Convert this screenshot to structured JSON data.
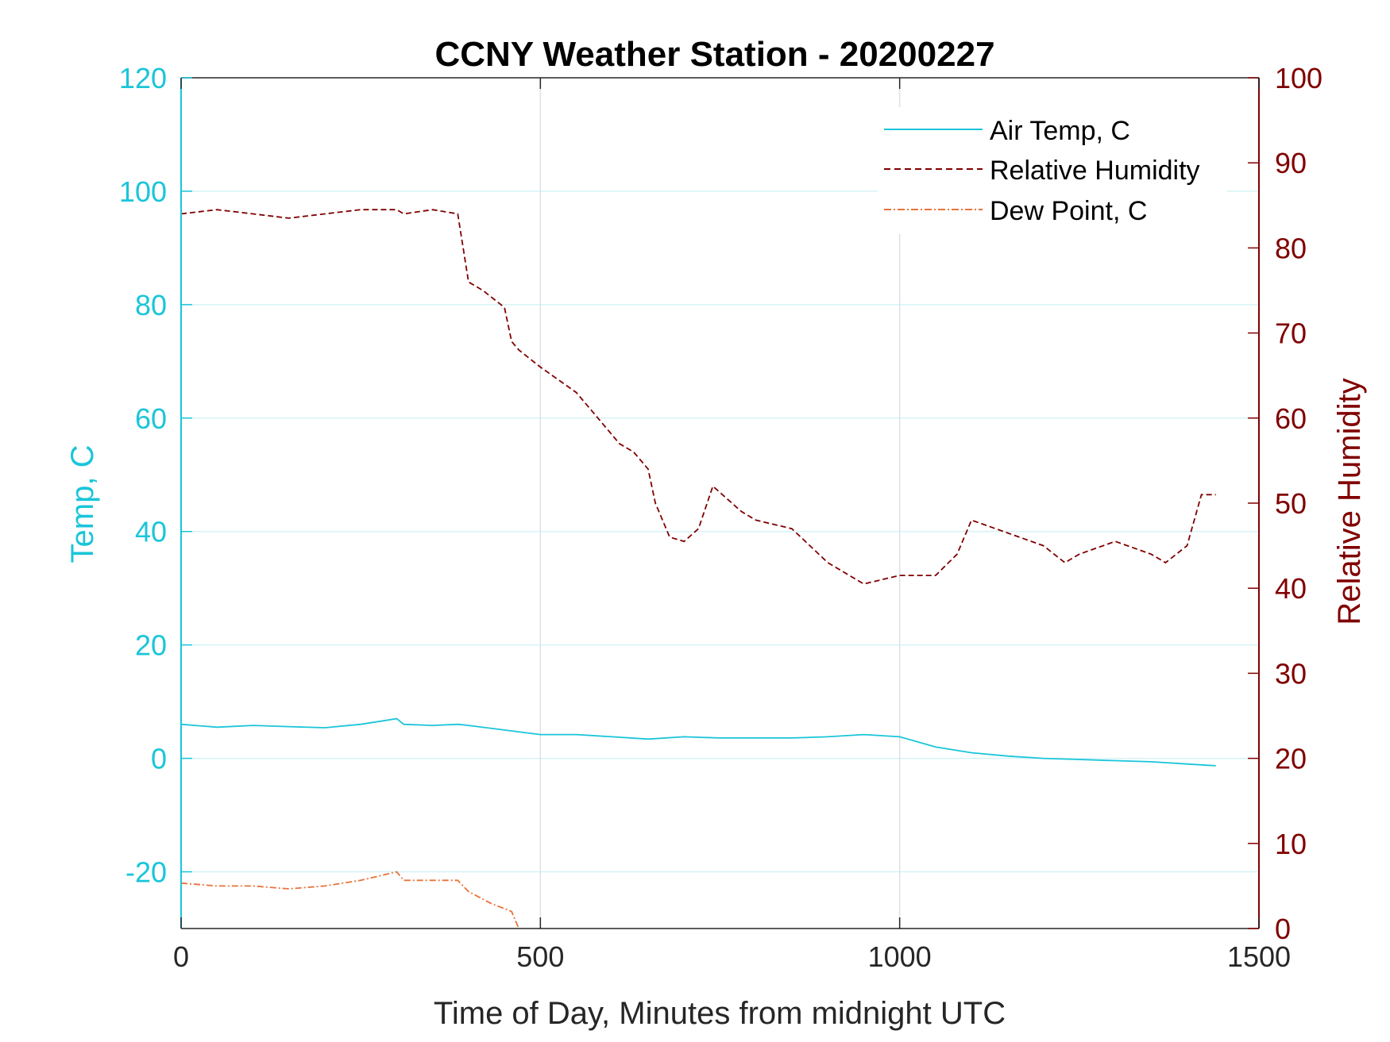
{
  "chart_data": {
    "type": "line",
    "title": "CCNY Weather Station - 20200227",
    "xlabel": "Time of Day, Minutes from midnight UTC",
    "ylabel_left": "Temp, C",
    "ylabel_right": "Relative Humidity",
    "xlim": [
      0,
      1500
    ],
    "ylim_left": [
      -30,
      120
    ],
    "ylim_right": [
      0,
      100
    ],
    "x_ticks": [
      0,
      500,
      1000,
      1500
    ],
    "y_ticks_left": [
      -20,
      0,
      20,
      40,
      60,
      80,
      100,
      120
    ],
    "y_ticks_right": [
      0,
      10,
      20,
      30,
      40,
      50,
      60,
      70,
      80,
      90,
      100
    ],
    "grid_y": "left-axis horizontal lines",
    "grid_x": "vertical lines",
    "legend_position": "top-right",
    "colors": {
      "left_axis": "#1ac5da",
      "right_axis": "#800000",
      "air_temp": "#1ac5da",
      "humidity": "#800000",
      "dew_point": "#e8733a"
    },
    "series": [
      {
        "name": "Air Temp, C",
        "axis": "left",
        "style": "solid",
        "x": [
          0,
          50,
          100,
          150,
          200,
          250,
          300,
          310,
          350,
          385,
          400,
          450,
          500,
          550,
          600,
          650,
          700,
          750,
          800,
          850,
          900,
          950,
          1000,
          1050,
          1100,
          1150,
          1200,
          1250,
          1300,
          1350,
          1400,
          1440
        ],
        "y": [
          6,
          5.5,
          5.8,
          5.6,
          5.4,
          6,
          7,
          6,
          5.8,
          6,
          5.8,
          5,
          4.2,
          4.2,
          3.8,
          3.4,
          3.8,
          3.6,
          3.6,
          3.6,
          3.8,
          4.2,
          3.8,
          2,
          1,
          0.4,
          0,
          -0.2,
          -0.4,
          -0.6,
          -1,
          -1.3
        ]
      },
      {
        "name": "Relative Humidity",
        "axis": "right",
        "style": "dashed",
        "x": [
          0,
          50,
          100,
          150,
          200,
          250,
          300,
          310,
          350,
          385,
          400,
          420,
          450,
          460,
          470,
          500,
          550,
          600,
          610,
          630,
          650,
          660,
          680,
          700,
          720,
          740,
          760,
          780,
          800,
          850,
          900,
          950,
          1000,
          1050,
          1080,
          1100,
          1150,
          1200,
          1230,
          1250,
          1300,
          1350,
          1370,
          1400,
          1420,
          1440
        ],
        "y": [
          84,
          84.5,
          84,
          83.5,
          84,
          84.5,
          84.5,
          84,
          84.5,
          84,
          76,
          75,
          73,
          69,
          68,
          66,
          63,
          58,
          57,
          56,
          54,
          50,
          46,
          45.5,
          47,
          52,
          50.5,
          49,
          48,
          47,
          43,
          40.5,
          41.5,
          41.5,
          44,
          48,
          46.5,
          45,
          43,
          44,
          45.5,
          44,
          43,
          45,
          51,
          51
        ]
      },
      {
        "name": "Dew Point, C",
        "axis": "left",
        "style": "dash-dot",
        "x": [
          0,
          50,
          100,
          150,
          200,
          250,
          300,
          310,
          350,
          385,
          400,
          430,
          460,
          470
        ],
        "y": [
          -22,
          -22.5,
          -22.5,
          -23,
          -22.5,
          -21.5,
          -20,
          -21.5,
          -21.5,
          -21.5,
          -23.5,
          -25.5,
          -27,
          -30
        ]
      }
    ]
  }
}
